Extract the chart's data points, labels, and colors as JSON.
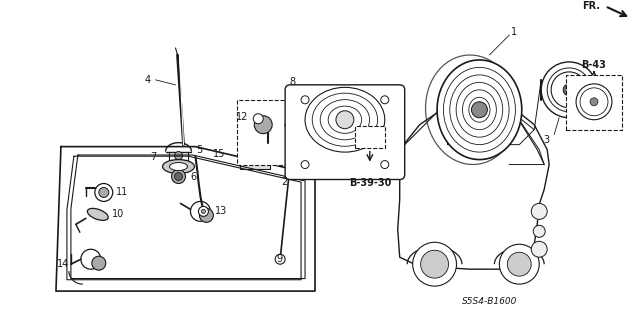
{
  "background_color": "#ffffff",
  "line_color": "#1a1a1a",
  "fig_width": 6.4,
  "fig_height": 3.19,
  "dpi": 100,
  "diagram_code": "S5S4-B1600",
  "fr_label": "FR.",
  "ref_b3930": "B-39-30",
  "ref_b43": "B-43"
}
